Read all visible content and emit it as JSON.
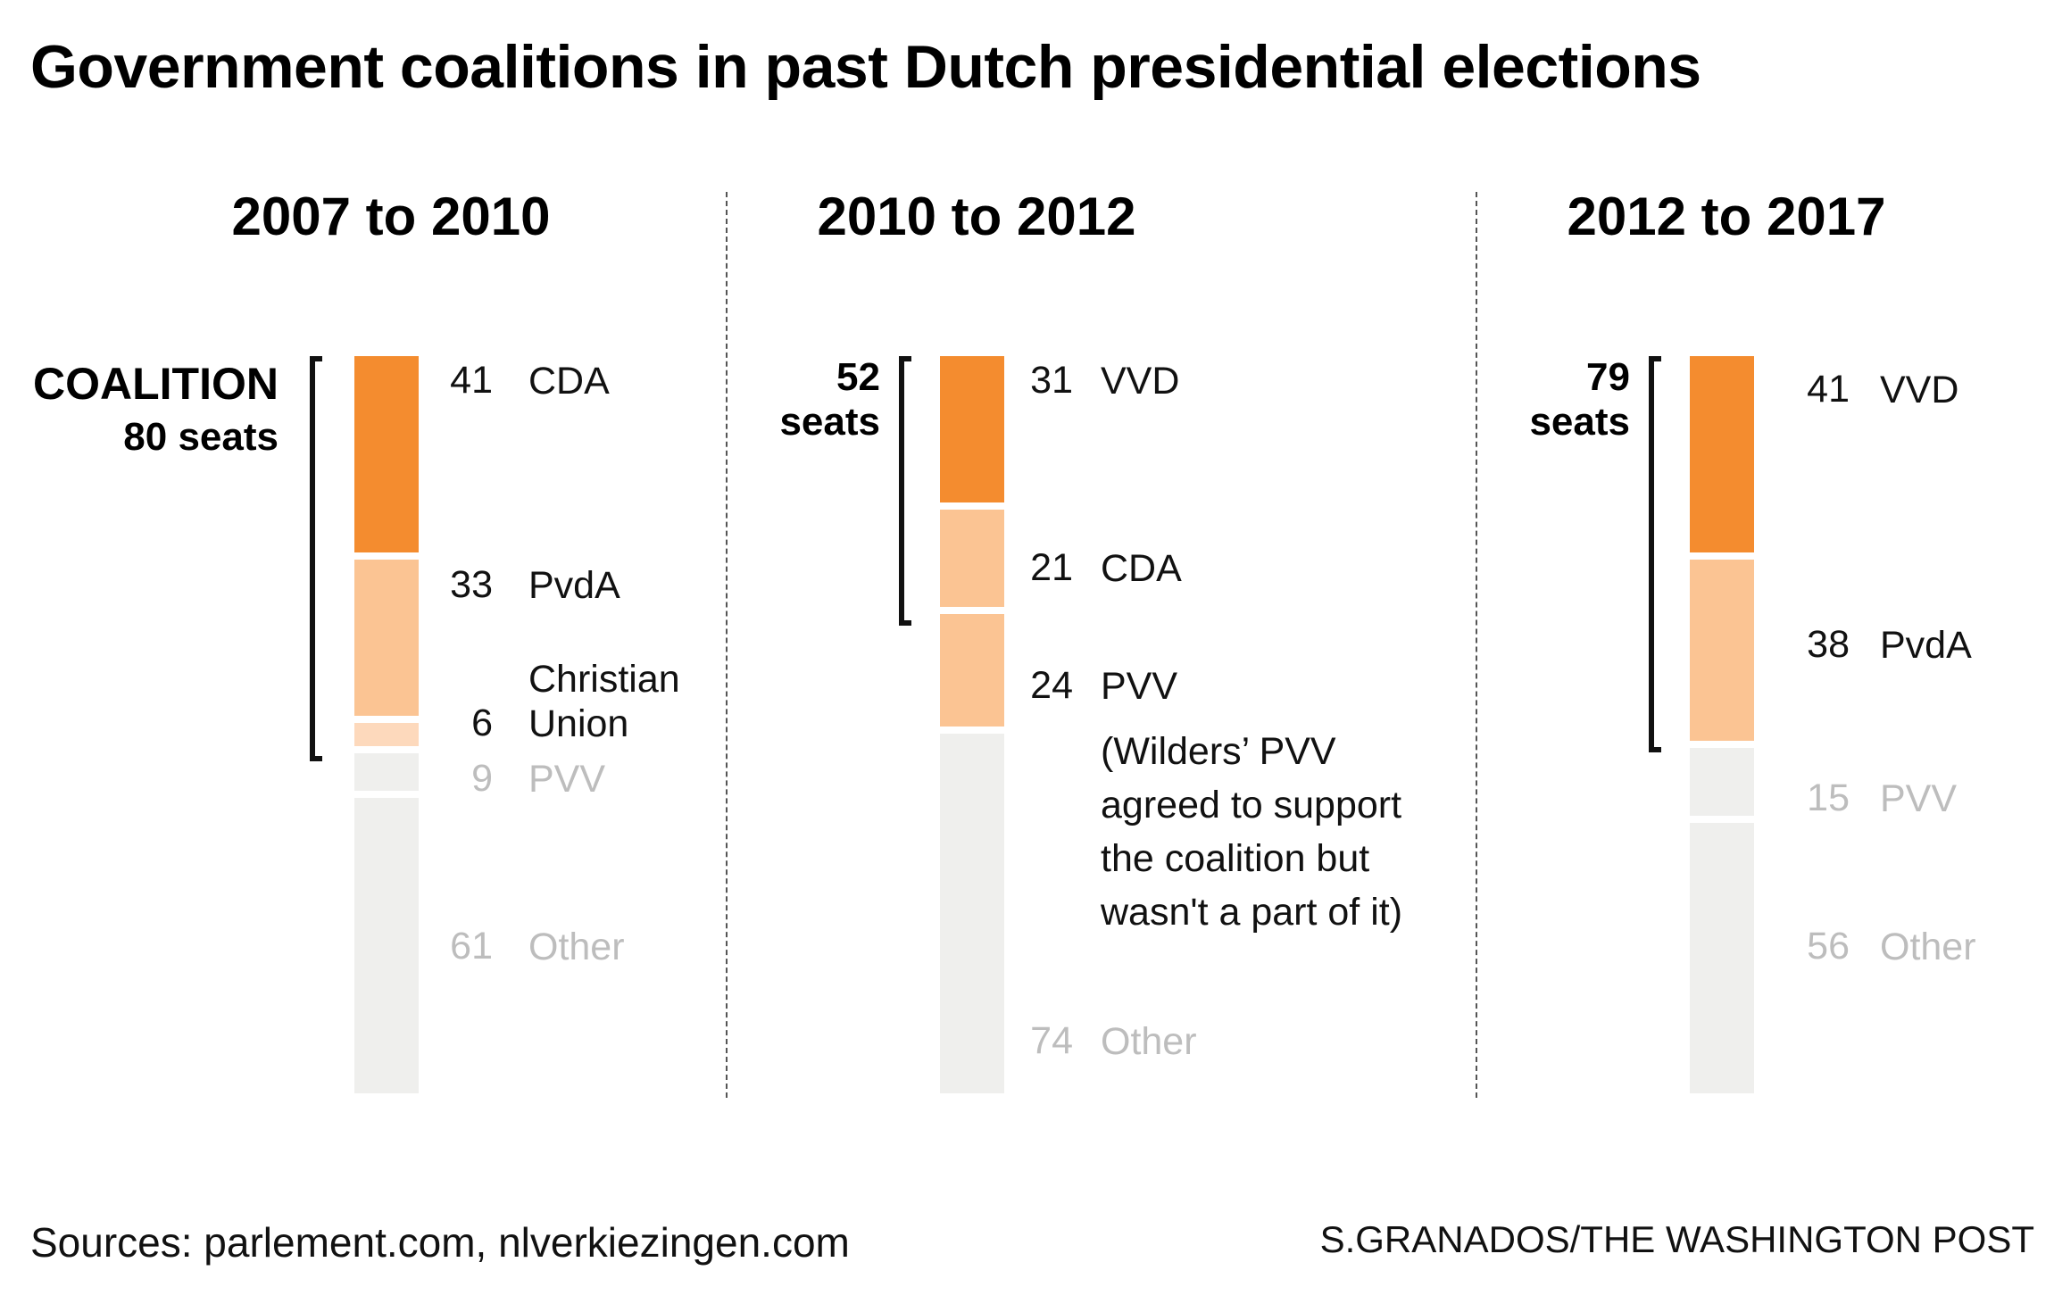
{
  "title": "Government coalitions in past Dutch presidential elections",
  "colors": {
    "coalition_lead": "#f48c2f",
    "coalition_partner": "#fbc493",
    "coalition_small": "#fdd9bc",
    "support_partner": "#fbc493",
    "non_coalition": "#efefed",
    "muted_text": "#bdbdbd",
    "text": "#111111"
  },
  "panels": [
    {
      "period": "2007 to 2010",
      "coalition_label_lines": [
        "COALITION",
        "80 seats"
      ],
      "parties": [
        {
          "seats": "41",
          "name": "CDA"
        },
        {
          "seats": "33",
          "name": "PvdA"
        },
        {
          "seats": "6",
          "name": "Christian Union"
        },
        {
          "seats": "9",
          "name": "PVV"
        },
        {
          "seats": "61",
          "name": "Other"
        }
      ]
    },
    {
      "period": "2010 to 2012",
      "coalition_label_lines": [
        "52",
        "seats"
      ],
      "parties": [
        {
          "seats": "31",
          "name": "VVD"
        },
        {
          "seats": "21",
          "name": "CDA"
        },
        {
          "seats": "24",
          "name": "PVV"
        },
        {
          "seats": "74",
          "name": "Other"
        }
      ],
      "note": "(Wilders’ PVV agreed to support the coalition but wasn't a part of it)"
    },
    {
      "period": "2012 to 2017",
      "coalition_label_lines": [
        "79",
        "seats"
      ],
      "parties": [
        {
          "seats": "41",
          "name": "VVD"
        },
        {
          "seats": "38",
          "name": "PvdA"
        },
        {
          "seats": "15",
          "name": "PVV"
        },
        {
          "seats": "56",
          "name": "Other"
        }
      ]
    }
  ],
  "footer": {
    "sources": "Sources: parlement.com, nlverkiezingen.com",
    "credit": "S.GRANADOS/THE WASHINGTON POST"
  },
  "chart_data": {
    "type": "bar",
    "stacked": true,
    "orientation": "vertical",
    "total_seats": 150,
    "categories": [
      "2007 to 2010",
      "2010 to 2012",
      "2012 to 2017"
    ],
    "series": [
      {
        "period": "2007 to 2010",
        "coalition_seats": 80,
        "segments": [
          {
            "party": "CDA",
            "seats": 41,
            "role": "coalition_lead"
          },
          {
            "party": "PvdA",
            "seats": 33,
            "role": "coalition_partner"
          },
          {
            "party": "Christian Union",
            "seats": 6,
            "role": "coalition_small"
          },
          {
            "party": "PVV",
            "seats": 9,
            "role": "non_coalition"
          },
          {
            "party": "Other",
            "seats": 61,
            "role": "non_coalition"
          }
        ]
      },
      {
        "period": "2010 to 2012",
        "coalition_seats": 52,
        "segments": [
          {
            "party": "VVD",
            "seats": 31,
            "role": "coalition_lead"
          },
          {
            "party": "CDA",
            "seats": 21,
            "role": "coalition_partner"
          },
          {
            "party": "PVV",
            "seats": 24,
            "role": "support_partner"
          },
          {
            "party": "Other",
            "seats": 74,
            "role": "non_coalition"
          }
        ]
      },
      {
        "period": "2012 to 2017",
        "coalition_seats": 79,
        "segments": [
          {
            "party": "VVD",
            "seats": 41,
            "role": "coalition_lead"
          },
          {
            "party": "PvdA",
            "seats": 38,
            "role": "coalition_partner"
          },
          {
            "party": "PVV",
            "seats": 15,
            "role": "non_coalition"
          },
          {
            "party": "Other",
            "seats": 56,
            "role": "non_coalition"
          }
        ]
      }
    ]
  }
}
